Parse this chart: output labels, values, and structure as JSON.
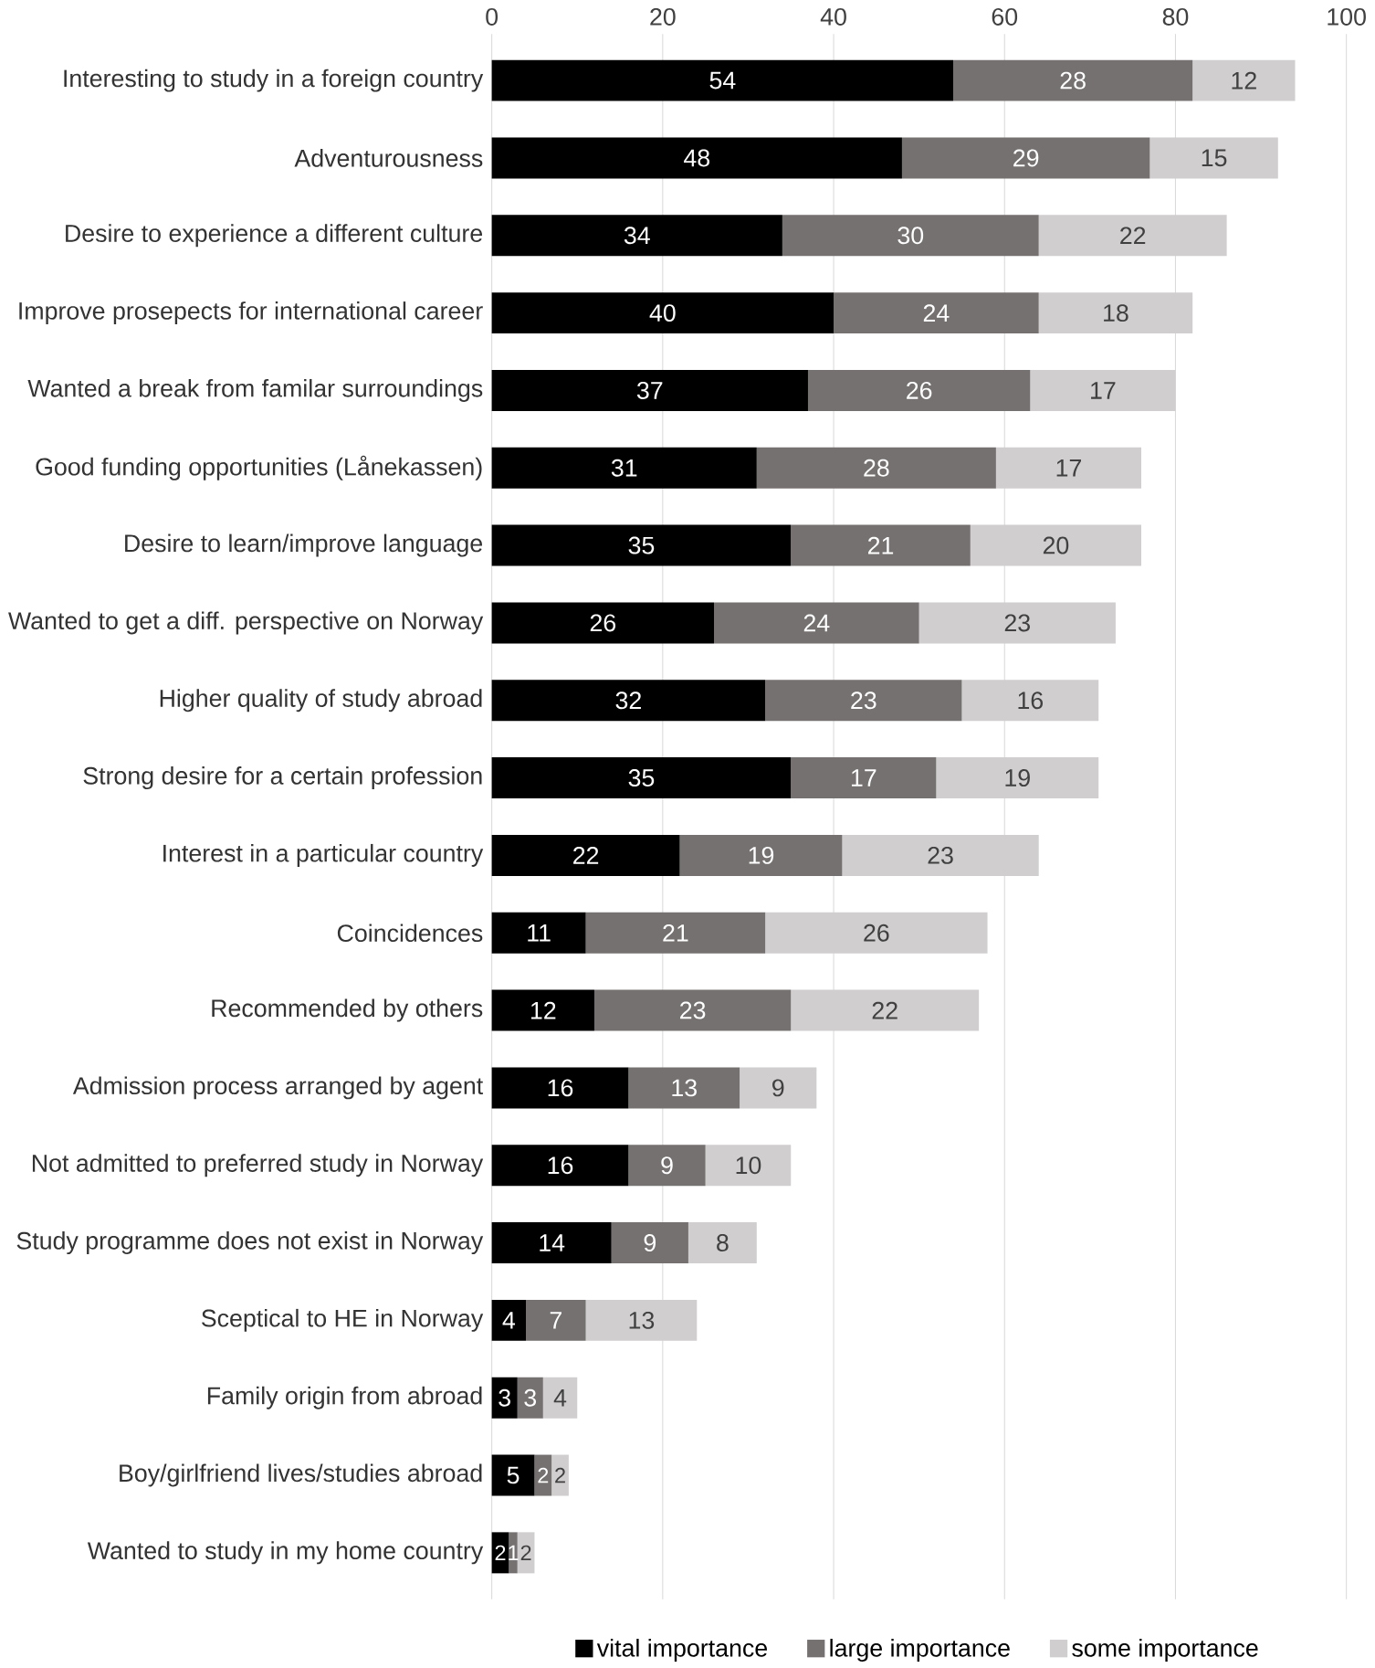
{
  "chart_data": {
    "type": "bar",
    "orientation": "horizontal",
    "stacked": true,
    "data_labels": true,
    "grid": "x",
    "legend": "bottom",
    "categories": [
      "Interesting to study in a foreign country",
      "Adventurousness",
      "Desire to experience a different culture",
      "Improve prosepects for international career",
      "Wanted a break from familar surroundings",
      "Good funding opportunities (Lånekassen)",
      "Desire to learn/improve language",
      "Wanted to get a diff. perspective on Norway",
      "Higher quality of study abroad",
      "Strong desire for a certain profession",
      "Interest in a particular country",
      "Coincidences",
      "Recommended by others",
      "Admission process arranged by agent",
      "Not admitted to preferred study in Norway",
      "Study programme does not exist in Norway",
      "Sceptical to HE in Norway",
      "Family origin from abroad",
      "Boy/girlfriend lives/studies abroad",
      "Wanted to study in my home country"
    ],
    "series": [
      {
        "name": "vital importance",
        "color": "#000000",
        "values": [
          54,
          48,
          34,
          40,
          37,
          31,
          35,
          26,
          32,
          35,
          22,
          11,
          12,
          16,
          16,
          14,
          4,
          3,
          5,
          2
        ]
      },
      {
        "name": "large importance",
        "color": "#767171",
        "values": [
          28,
          29,
          30,
          24,
          26,
          28,
          21,
          24,
          23,
          17,
          19,
          21,
          23,
          13,
          9,
          9,
          7,
          3,
          2,
          1
        ]
      },
      {
        "name": "some importance",
        "color": "#d0cece",
        "values": [
          12,
          15,
          22,
          18,
          17,
          17,
          20,
          23,
          16,
          19,
          23,
          26,
          22,
          9,
          10,
          8,
          13,
          4,
          2,
          2
        ]
      }
    ],
    "xlim": [
      0,
      100
    ],
    "xticks": [
      0,
      20,
      40,
      60,
      80,
      100
    ]
  }
}
